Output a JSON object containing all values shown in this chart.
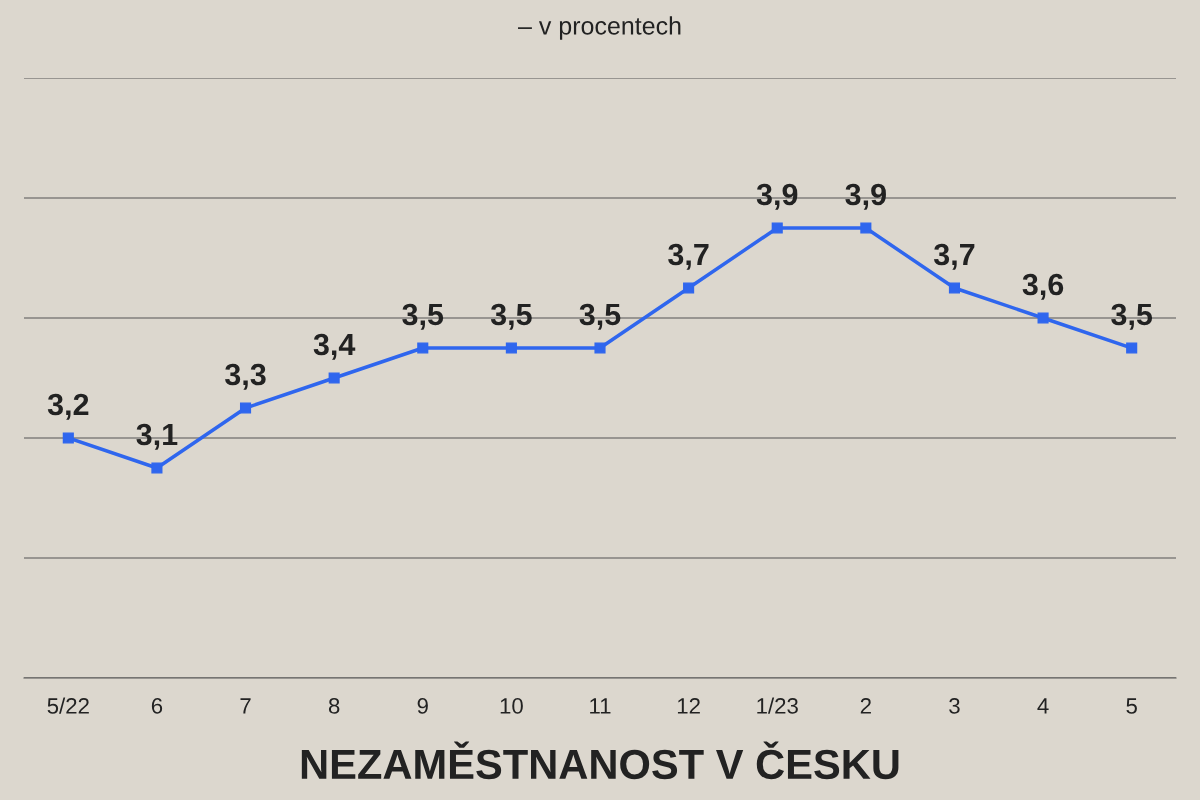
{
  "chart_data": {
    "type": "line",
    "title": "NEZAMĚSTNANOST V ČESKU",
    "subtitle": "– v procentech",
    "categories": [
      "5/22",
      "6",
      "7",
      "8",
      "9",
      "10",
      "11",
      "12",
      "1/23",
      "2",
      "3",
      "4",
      "5"
    ],
    "series": [
      {
        "color": "#2f66ee",
        "values": [
          3.2,
          3.1,
          3.3,
          3.4,
          3.5,
          3.5,
          3.5,
          3.7,
          3.9,
          3.9,
          3.7,
          3.6,
          3.5
        ],
        "value_labels": [
          "3,2",
          "3,1",
          "3,3",
          "3,4",
          "3,5",
          "3,5",
          "3,5",
          "3,7",
          "3,9",
          "3,9",
          "3,7",
          "3,6",
          "3,5"
        ]
      }
    ],
    "ylim": [
      2.4,
      4.4
    ],
    "yticks": [
      {
        "value": 2.4,
        "label": null
      },
      {
        "value": 2.8,
        "label": null
      },
      {
        "value": 3.2,
        "label": null
      },
      {
        "value": 3.6,
        "label": null
      },
      {
        "value": 4.0,
        "label": null
      },
      {
        "value": 4.4,
        "label": null
      }
    ],
    "grid": "y",
    "tick_labels": "x",
    "marker": "square",
    "line_style": "solid"
  }
}
